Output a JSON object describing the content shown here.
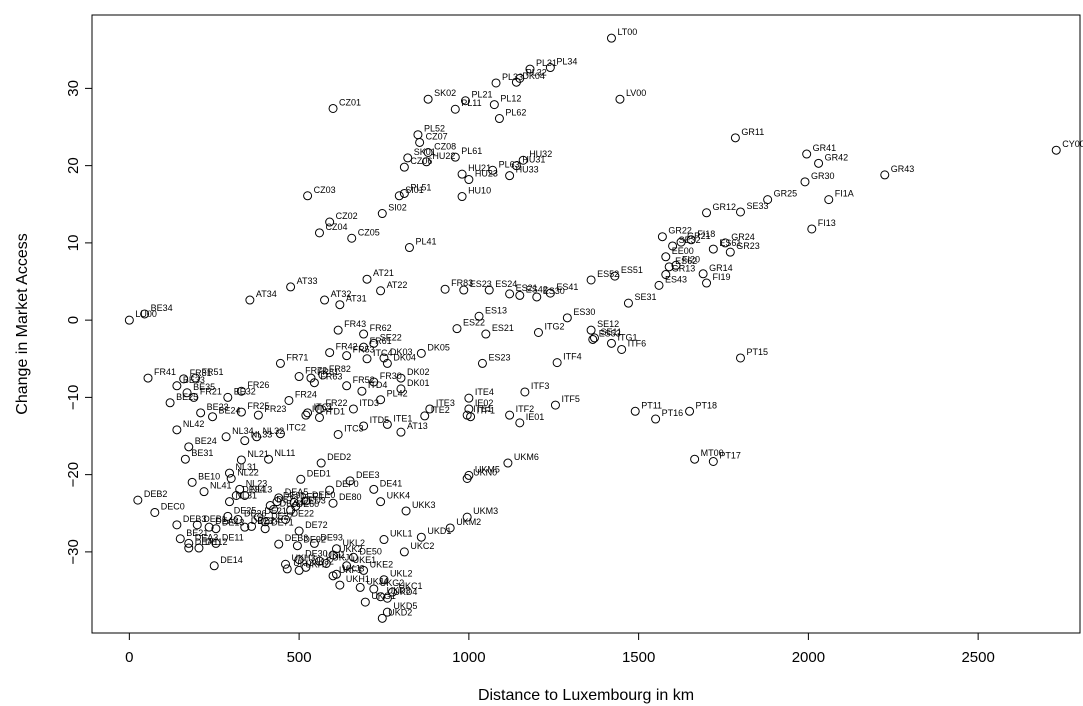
{
  "chart_data": {
    "type": "scatter",
    "title": "",
    "xlabel": "Distance to Luxembourg in km",
    "ylabel": "Change in Market Access",
    "xlim": [
      -110,
      2800
    ],
    "ylim": [
      -40.5,
      39.5
    ],
    "x_ticks": [
      0,
      500,
      1000,
      1500,
      2000,
      2500
    ],
    "y_ticks": [
      -30,
      -20,
      -10,
      0,
      10,
      20,
      30
    ],
    "grid": false,
    "marker": "open-circle",
    "points": [
      {
        "label": "LT00",
        "x": 1420,
        "y": 36.5
      },
      {
        "label": "PL31",
        "x": 1180,
        "y": 32.5
      },
      {
        "label": "PL34",
        "x": 1240,
        "y": 32.7
      },
      {
        "label": "PL32",
        "x": 1150,
        "y": 31.3
      },
      {
        "label": "PL33",
        "x": 1080,
        "y": 30.7
      },
      {
        "label": "DK04",
        "x": 1140,
        "y": 30.8
      },
      {
        "label": "SK02",
        "x": 880,
        "y": 28.6
      },
      {
        "label": "LV00",
        "x": 1445,
        "y": 28.6
      },
      {
        "label": "PL21",
        "x": 990,
        "y": 28.4
      },
      {
        "label": "PL12",
        "x": 1075,
        "y": 27.9
      },
      {
        "label": "PL11",
        "x": 960,
        "y": 27.3
      },
      {
        "label": "CZ01",
        "x": 600,
        "y": 27.4
      },
      {
        "label": "PL62",
        "x": 1090,
        "y": 26.1
      },
      {
        "label": "PL52",
        "x": 850,
        "y": 24.0
      },
      {
        "label": "GR11",
        "x": 1785,
        "y": 23.6
      },
      {
        "label": "CZ07",
        "x": 855,
        "y": 23.0
      },
      {
        "label": "CZ08",
        "x": 880,
        "y": 21.7
      },
      {
        "label": "CY00",
        "x": 2730,
        "y": 22.0
      },
      {
        "label": "GR41",
        "x": 1995,
        "y": 21.5
      },
      {
        "label": "SK01",
        "x": 820,
        "y": 21.0
      },
      {
        "label": "PL61",
        "x": 960,
        "y": 21.1
      },
      {
        "label": "HU22",
        "x": 875,
        "y": 20.5
      },
      {
        "label": "HU32",
        "x": 1160,
        "y": 20.7
      },
      {
        "label": "GR42",
        "x": 2030,
        "y": 20.3
      },
      {
        "label": "CZ06",
        "x": 810,
        "y": 19.8
      },
      {
        "label": "HU31",
        "x": 1140,
        "y": 20.0
      },
      {
        "label": "HU33",
        "x": 1120,
        "y": 18.7
      },
      {
        "label": "PL63",
        "x": 1070,
        "y": 19.4
      },
      {
        "label": "HU21",
        "x": 980,
        "y": 18.9
      },
      {
        "label": "HU23",
        "x": 1000,
        "y": 18.2
      },
      {
        "label": "GR43",
        "x": 2225,
        "y": 18.8
      },
      {
        "label": "GR30",
        "x": 1990,
        "y": 17.9
      },
      {
        "label": "HU10",
        "x": 980,
        "y": 16.0
      },
      {
        "label": "SI01",
        "x": 795,
        "y": 16.1
      },
      {
        "label": "PL51",
        "x": 810,
        "y": 16.4
      },
      {
        "label": "CZ03",
        "x": 525,
        "y": 16.1
      },
      {
        "label": "GR25",
        "x": 1880,
        "y": 15.6
      },
      {
        "label": "FI1A",
        "x": 2060,
        "y": 15.6
      },
      {
        "label": "SI02",
        "x": 745,
        "y": 13.8
      },
      {
        "label": "GR12",
        "x": 1700,
        "y": 13.9
      },
      {
        "label": "SE33",
        "x": 1800,
        "y": 14.0
      },
      {
        "label": "CZ02",
        "x": 590,
        "y": 12.7
      },
      {
        "label": "FI13",
        "x": 2010,
        "y": 11.8
      },
      {
        "label": "CZ04",
        "x": 560,
        "y": 11.3
      },
      {
        "label": "GR22",
        "x": 1570,
        "y": 10.8
      },
      {
        "label": "FI18",
        "x": 1655,
        "y": 10.4
      },
      {
        "label": "GR24",
        "x": 1755,
        "y": 10.0
      },
      {
        "label": "GR21",
        "x": 1625,
        "y": 10.1
      },
      {
        "label": "CZ05",
        "x": 655,
        "y": 10.6
      },
      {
        "label": "SE32",
        "x": 1600,
        "y": 9.6
      },
      {
        "label": "ES61",
        "x": 1720,
        "y": 9.2
      },
      {
        "label": "GR23",
        "x": 1770,
        "y": 8.8
      },
      {
        "label": "PL41",
        "x": 825,
        "y": 9.4
      },
      {
        "label": "EE00",
        "x": 1580,
        "y": 8.2
      },
      {
        "label": "FI20",
        "x": 1610,
        "y": 7.1
      },
      {
        "label": "ES62",
        "x": 1590,
        "y": 6.9
      },
      {
        "label": "GR13",
        "x": 1580,
        "y": 5.9
      },
      {
        "label": "ES51",
        "x": 1430,
        "y": 5.7
      },
      {
        "label": "GR14",
        "x": 1690,
        "y": 6.0
      },
      {
        "label": "ES52",
        "x": 1360,
        "y": 5.2
      },
      {
        "label": "FI19",
        "x": 1700,
        "y": 4.8
      },
      {
        "label": "ES43",
        "x": 1560,
        "y": 4.5
      },
      {
        "label": "AT21",
        "x": 700,
        "y": 5.3
      },
      {
        "label": "AT33",
        "x": 475,
        "y": 4.3
      },
      {
        "label": "FR83",
        "x": 930,
        "y": 4.0
      },
      {
        "label": "ES23",
        "x": 985,
        "y": 3.9
      },
      {
        "label": "ES24",
        "x": 1060,
        "y": 3.9
      },
      {
        "label": "AT22",
        "x": 740,
        "y": 3.8
      },
      {
        "label": "ES21",
        "x": 1120,
        "y": 3.4
      },
      {
        "label": "ES41",
        "x": 1240,
        "y": 3.5
      },
      {
        "label": "ES42",
        "x": 1150,
        "y": 3.2
      },
      {
        "label": "ES30",
        "x": 1200,
        "y": 3.0
      },
      {
        "label": "AT34",
        "x": 355,
        "y": 2.6
      },
      {
        "label": "AT32",
        "x": 575,
        "y": 2.6
      },
      {
        "label": "AT31",
        "x": 620,
        "y": 2.0
      },
      {
        "label": "SE31",
        "x": 1470,
        "y": 2.2
      },
      {
        "label": "BE34",
        "x": 45,
        "y": 0.8
      },
      {
        "label": "LU00",
        "x": 0,
        "y": 0.0
      },
      {
        "label": "ES13",
        "x": 1030,
        "y": 0.5
      },
      {
        "label": "ES30",
        "x": 1290,
        "y": 0.3
      },
      {
        "label": "ES22",
        "x": 965,
        "y": -1.1
      },
      {
        "label": "FR43",
        "x": 615,
        "y": -1.3
      },
      {
        "label": "FR62",
        "x": 690,
        "y": -1.8
      },
      {
        "label": "ES21",
        "x": 1050,
        "y": -1.8
      },
      {
        "label": "ITG2",
        "x": 1205,
        "y": -1.6
      },
      {
        "label": "SE12",
        "x": 1360,
        "y": -1.3
      },
      {
        "label": "SE11",
        "x": 1370,
        "y": -2.3
      },
      {
        "label": "ES53",
        "x": 1365,
        "y": -2.5
      },
      {
        "label": "FR61",
        "x": 690,
        "y": -3.5
      },
      {
        "label": "SE22",
        "x": 720,
        "y": -3.0
      },
      {
        "label": "ITG1",
        "x": 1420,
        "y": -3.0
      },
      {
        "label": "ITF6",
        "x": 1450,
        "y": -3.8
      },
      {
        "label": "FR42",
        "x": 590,
        "y": -4.2
      },
      {
        "label": "DK05",
        "x": 860,
        "y": -4.3
      },
      {
        "label": "FR53",
        "x": 640,
        "y": -4.6
      },
      {
        "label": "DK03",
        "x": 750,
        "y": -4.9
      },
      {
        "label": "ITC4",
        "x": 700,
        "y": -5.0
      },
      {
        "label": "DK04",
        "x": 760,
        "y": -5.6
      },
      {
        "label": "ES23",
        "x": 1040,
        "y": -5.6
      },
      {
        "label": "PT15",
        "x": 1800,
        "y": -4.9
      },
      {
        "label": "ITF4",
        "x": 1260,
        "y": -5.5
      },
      {
        "label": "FR71",
        "x": 445,
        "y": -5.6
      },
      {
        "label": "FR72",
        "x": 500,
        "y": -7.3
      },
      {
        "label": "FR82",
        "x": 570,
        "y": -7.1
      },
      {
        "label": "FR81",
        "x": 535,
        "y": -7.5
      },
      {
        "label": "FR63",
        "x": 545,
        "y": -8.1
      },
      {
        "label": "FR41",
        "x": 55,
        "y": -7.5
      },
      {
        "label": "FR31",
        "x": 160,
        "y": -7.6
      },
      {
        "label": "FR51",
        "x": 195,
        "y": -7.5
      },
      {
        "label": "FR52",
        "x": 640,
        "y": -8.5
      },
      {
        "label": "FR30",
        "x": 720,
        "y": -8.0
      },
      {
        "label": "DK02",
        "x": 800,
        "y": -7.5
      },
      {
        "label": "DK01",
        "x": 800,
        "y": -8.9
      },
      {
        "label": "ITD4",
        "x": 685,
        "y": -9.2
      },
      {
        "label": "BE33",
        "x": 140,
        "y": -8.5
      },
      {
        "label": "BE35",
        "x": 170,
        "y": -9.4
      },
      {
        "label": "FR21",
        "x": 190,
        "y": -10.0
      },
      {
        "label": "FR26",
        "x": 330,
        "y": -9.2
      },
      {
        "label": "BE32",
        "x": 290,
        "y": -10.0
      },
      {
        "label": "FR24",
        "x": 470,
        "y": -10.4
      },
      {
        "label": "PL42",
        "x": 740,
        "y": -10.3
      },
      {
        "label": "ITF3",
        "x": 1165,
        "y": -9.3
      },
      {
        "label": "ITE3",
        "x": 885,
        "y": -11.5
      },
      {
        "label": "ITE4",
        "x": 1000,
        "y": -10.1
      },
      {
        "label": "ITF5",
        "x": 1255,
        "y": -11.0
      },
      {
        "label": "PT11",
        "x": 1490,
        "y": -11.8
      },
      {
        "label": "PT18",
        "x": 1650,
        "y": -11.8
      },
      {
        "label": "PT16",
        "x": 1550,
        "y": -12.8
      },
      {
        "label": "BE25",
        "x": 120,
        "y": -10.7
      },
      {
        "label": "BE23",
        "x": 210,
        "y": -12.0
      },
      {
        "label": "BE24",
        "x": 245,
        "y": -12.5
      },
      {
        "label": "FR25",
        "x": 330,
        "y": -11.9
      },
      {
        "label": "FR23",
        "x": 380,
        "y": -12.3
      },
      {
        "label": "FR22",
        "x": 560,
        "y": -11.5
      },
      {
        "label": "ITD3",
        "x": 660,
        "y": -11.5
      },
      {
        "label": "ITD1",
        "x": 560,
        "y": -12.6
      },
      {
        "label": "ITC1",
        "x": 525,
        "y": -12.0
      },
      {
        "label": "ITD2",
        "x": 520,
        "y": -12.3
      },
      {
        "label": "ITE2",
        "x": 870,
        "y": -12.4
      },
      {
        "label": "ITE1",
        "x": 995,
        "y": -12.3
      },
      {
        "label": "ITF1",
        "x": 1005,
        "y": -12.5
      },
      {
        "label": "ITF2",
        "x": 1120,
        "y": -12.3
      },
      {
        "label": "IE02",
        "x": 1000,
        "y": -11.5
      },
      {
        "label": "IE01",
        "x": 1150,
        "y": -13.3
      },
      {
        "label": "ITC3",
        "x": 615,
        "y": -14.8
      },
      {
        "label": "ITD5",
        "x": 690,
        "y": -13.7
      },
      {
        "label": "ITE1",
        "x": 760,
        "y": -13.5
      },
      {
        "label": "AT13",
        "x": 800,
        "y": -14.5
      },
      {
        "label": "ITC2",
        "x": 445,
        "y": -14.7
      },
      {
        "label": "NL42",
        "x": 140,
        "y": -14.2
      },
      {
        "label": "NL34",
        "x": 285,
        "y": -15.1
      },
      {
        "label": "NL32",
        "x": 375,
        "y": -15.1
      },
      {
        "label": "NL33",
        "x": 340,
        "y": -15.6
      },
      {
        "label": "BE24",
        "x": 175,
        "y": -16.4
      },
      {
        "label": "BE31",
        "x": 165,
        "y": -18.0
      },
      {
        "label": "NL21",
        "x": 330,
        "y": -18.1
      },
      {
        "label": "NL11",
        "x": 410,
        "y": -18.0
      },
      {
        "label": "DED2",
        "x": 565,
        "y": -18.5
      },
      {
        "label": "MT00",
        "x": 1665,
        "y": -18.0
      },
      {
        "label": "PT17",
        "x": 1720,
        "y": -18.3
      },
      {
        "label": "UKM6",
        "x": 1115,
        "y": -18.5
      },
      {
        "label": "NL31",
        "x": 295,
        "y": -19.8
      },
      {
        "label": "NL22",
        "x": 300,
        "y": -20.5
      },
      {
        "label": "BE10",
        "x": 185,
        "y": -21.0
      },
      {
        "label": "UKM5",
        "x": 1000,
        "y": -20.1
      },
      {
        "label": "UKN0",
        "x": 995,
        "y": -20.5
      },
      {
        "label": "DED1",
        "x": 505,
        "y": -20.6
      },
      {
        "label": "DEE3",
        "x": 650,
        "y": -20.8
      },
      {
        "label": "NL23",
        "x": 325,
        "y": -21.9
      },
      {
        "label": "NL41",
        "x": 220,
        "y": -22.2
      },
      {
        "label": "DEF0",
        "x": 590,
        "y": -22.0
      },
      {
        "label": "DE41",
        "x": 720,
        "y": -21.9
      },
      {
        "label": "NL13",
        "x": 340,
        "y": -22.7
      },
      {
        "label": "DE94",
        "x": 315,
        "y": -22.7
      },
      {
        "label": "NL31",
        "x": 295,
        "y": -23.5
      },
      {
        "label": "DEB2",
        "x": 25,
        "y": -23.3
      },
      {
        "label": "DEA5",
        "x": 440,
        "y": -23.0
      },
      {
        "label": "DE91",
        "x": 435,
        "y": -23.5
      },
      {
        "label": "DEE1",
        "x": 485,
        "y": -23.6
      },
      {
        "label": "DEE0",
        "x": 520,
        "y": -23.4
      },
      {
        "label": "DE80",
        "x": 600,
        "y": -23.7
      },
      {
        "label": "UKK4",
        "x": 740,
        "y": -23.5
      },
      {
        "label": "DE73",
        "x": 415,
        "y": -24.0
      },
      {
        "label": "DEA4",
        "x": 425,
        "y": -24.5
      },
      {
        "label": "DED3",
        "x": 490,
        "y": -24.1
      },
      {
        "label": "DE60",
        "x": 475,
        "y": -24.6
      },
      {
        "label": "DEC0",
        "x": 75,
        "y": -24.9
      },
      {
        "label": "UKK3",
        "x": 815,
        "y": -24.7
      },
      {
        "label": "DE25",
        "x": 290,
        "y": -25.4
      },
      {
        "label": "DE26",
        "x": 320,
        "y": -25.8
      },
      {
        "label": "DE22",
        "x": 460,
        "y": -25.8
      },
      {
        "label": "DE27",
        "x": 400,
        "y": -26.1
      },
      {
        "label": "DE21",
        "x": 380,
        "y": -25.5
      },
      {
        "label": "UKM3",
        "x": 995,
        "y": -25.5
      },
      {
        "label": "DEB3",
        "x": 140,
        "y": -26.5
      },
      {
        "label": "DEB1",
        "x": 200,
        "y": -26.5
      },
      {
        "label": "DEA2",
        "x": 235,
        "y": -26.8
      },
      {
        "label": "DE13",
        "x": 255,
        "y": -27.0
      },
      {
        "label": "DE23",
        "x": 340,
        "y": -26.8
      },
      {
        "label": "DE24",
        "x": 360,
        "y": -26.7
      },
      {
        "label": "DE71",
        "x": 400,
        "y": -27.0
      },
      {
        "label": "DE72",
        "x": 500,
        "y": -27.3
      },
      {
        "label": "UKM2",
        "x": 945,
        "y": -26.9
      },
      {
        "label": "DE93",
        "x": 545,
        "y": -28.9
      },
      {
        "label": "UKL1",
        "x": 750,
        "y": -28.4
      },
      {
        "label": "UKD1",
        "x": 860,
        "y": -28.1
      },
      {
        "label": "BE21",
        "x": 150,
        "y": -28.3
      },
      {
        "label": "DEA3",
        "x": 175,
        "y": -28.9
      },
      {
        "label": "DE11",
        "x": 255,
        "y": -28.9
      },
      {
        "label": "DEB3",
        "x": 440,
        "y": -29.0
      },
      {
        "label": "DE92",
        "x": 495,
        "y": -29.2
      },
      {
        "label": "UKL2",
        "x": 610,
        "y": -29.6
      },
      {
        "label": "DEA1",
        "x": 175,
        "y": -29.5
      },
      {
        "label": "DE12",
        "x": 205,
        "y": -29.5
      },
      {
        "label": "UKK2",
        "x": 600,
        "y": -30.4
      },
      {
        "label": "UKC2",
        "x": 810,
        "y": -30.0
      },
      {
        "label": "DE50",
        "x": 660,
        "y": -30.7
      },
      {
        "label": "DE14",
        "x": 250,
        "y": -31.8
      },
      {
        "label": "DE30",
        "x": 500,
        "y": -31.0
      },
      {
        "label": "UKI1",
        "x": 560,
        "y": -31.2
      },
      {
        "label": "UKH3",
        "x": 460,
        "y": -31.6
      },
      {
        "label": "UKJ1",
        "x": 580,
        "y": -31.5
      },
      {
        "label": "UKH2",
        "x": 500,
        "y": -32.4
      },
      {
        "label": "UKE1",
        "x": 640,
        "y": -31.8
      },
      {
        "label": "UKJ2",
        "x": 520,
        "y": -32.0
      },
      {
        "label": "UKI2",
        "x": 465,
        "y": -32.2
      },
      {
        "label": "UKE2",
        "x": 690,
        "y": -32.4
      },
      {
        "label": "UKJ3",
        "x": 610,
        "y": -32.9
      },
      {
        "label": "UKF1",
        "x": 600,
        "y": -33.1
      },
      {
        "label": "UKL2",
        "x": 750,
        "y": -33.6
      },
      {
        "label": "UKH1",
        "x": 620,
        "y": -34.3
      },
      {
        "label": "UKJ4",
        "x": 680,
        "y": -34.6
      },
      {
        "label": "UKG2",
        "x": 720,
        "y": -34.8
      },
      {
        "label": "UKC1",
        "x": 775,
        "y": -35.2
      },
      {
        "label": "UKD4",
        "x": 760,
        "y": -36.0
      },
      {
        "label": "UKD3",
        "x": 740,
        "y": -35.8
      },
      {
        "label": "UKG1",
        "x": 695,
        "y": -36.5
      },
      {
        "label": "UKD5",
        "x": 760,
        "y": -37.8
      },
      {
        "label": "UKD2",
        "x": 745,
        "y": -38.6
      }
    ]
  }
}
